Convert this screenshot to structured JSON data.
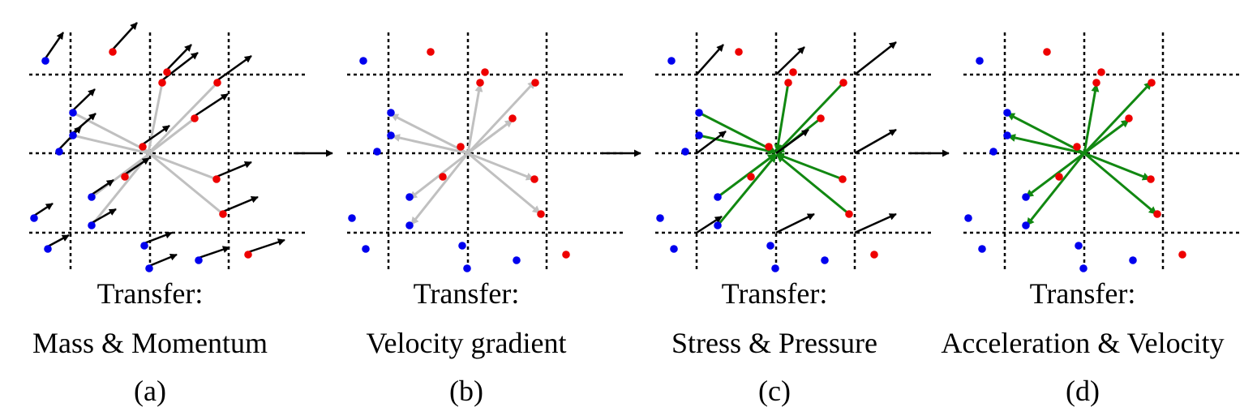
{
  "colors": {
    "background": "#ffffff",
    "grid": "#000000",
    "particle_blue": "#0000ee",
    "particle_red": "#ee0000",
    "velocity_arrow": "#000000",
    "transfer_gray": "#c0c0c0",
    "transfer_green": "#118811"
  },
  "panels": [
    {
      "id": "a",
      "caption": {
        "line1": "Transfer:",
        "line2": "Mass & Momentum",
        "label": "(a)"
      },
      "particle_velocity_arrows": true,
      "transfer_arrows": "gray-to-center",
      "center_node_arrows": false
    },
    {
      "id": "b",
      "caption": {
        "line1": "Transfer:",
        "line2": "Velocity gradient",
        "label": "(b)"
      },
      "particle_velocity_arrows": false,
      "transfer_arrows": "gray-from-center",
      "center_node_arrows": false
    },
    {
      "id": "c",
      "caption": {
        "line1": "Transfer:",
        "line2": "Stress & Pressure",
        "label": "(c)"
      },
      "particle_velocity_arrows": false,
      "transfer_arrows": "green-to-center",
      "center_node_arrows": true
    },
    {
      "id": "d",
      "caption": {
        "line1": "Transfer:",
        "line2": "Acceleration & Velocity",
        "label": "(d)"
      },
      "particle_velocity_arrows": false,
      "transfer_arrows": "green-from-center",
      "center_node_arrows": false
    }
  ]
}
